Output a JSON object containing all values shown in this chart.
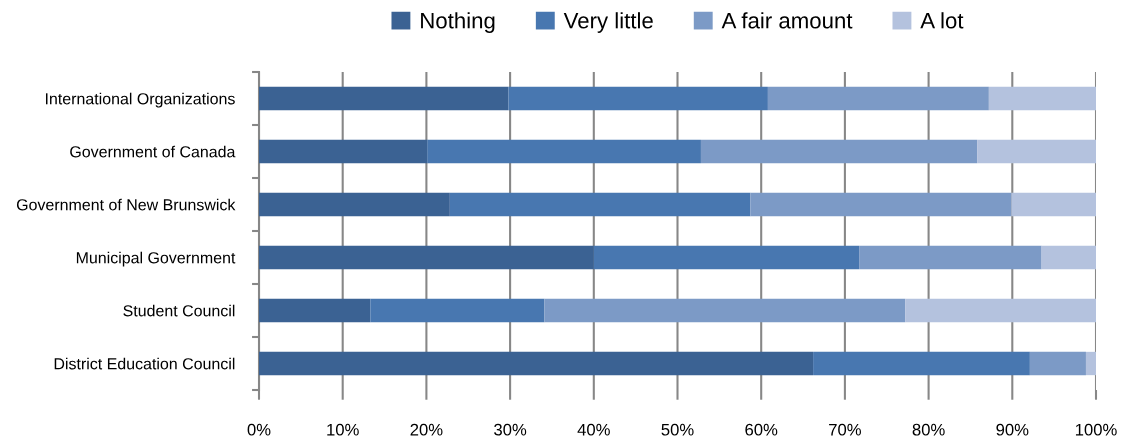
{
  "chart_data": {
    "type": "bar",
    "orientation": "horizontal",
    "stacked": true,
    "categories": [
      "International Organizations",
      "Government of Canada",
      "Government of New Brunswick",
      "Municipal Government",
      "Student Council",
      "District Education Council"
    ],
    "series": [
      {
        "name": "Nothing",
        "color": "#3b6293",
        "values": [
          29.8,
          20.1,
          22.8,
          40.0,
          13.3,
          66.2
        ]
      },
      {
        "name": "Very little",
        "color": "#4877b0",
        "values": [
          31.0,
          32.7,
          35.9,
          31.7,
          20.8,
          25.9
        ]
      },
      {
        "name": "A fair amount",
        "color": "#7c9ac6",
        "values": [
          26.4,
          33.0,
          31.2,
          21.8,
          43.1,
          6.7
        ]
      },
      {
        "name": "A lot",
        "color": "#b4c2de",
        "values": [
          12.8,
          14.2,
          10.1,
          6.5,
          22.8,
          1.2
        ]
      }
    ],
    "xlim": [
      0,
      100
    ],
    "xticks": [
      {
        "value": 0,
        "label": "0%"
      },
      {
        "value": 10,
        "label": "10%"
      },
      {
        "value": 20,
        "label": "20%"
      },
      {
        "value": 30,
        "label": "30%"
      },
      {
        "value": 40,
        "label": "40%"
      },
      {
        "value": 50,
        "label": "50%"
      },
      {
        "value": 60,
        "label": "60%"
      },
      {
        "value": 70,
        "label": "70%"
      },
      {
        "value": 80,
        "label": "80%"
      },
      {
        "value": 90,
        "label": "90%"
      },
      {
        "value": 100,
        "label": "100%"
      }
    ],
    "grid": "x",
    "legend": "top"
  }
}
